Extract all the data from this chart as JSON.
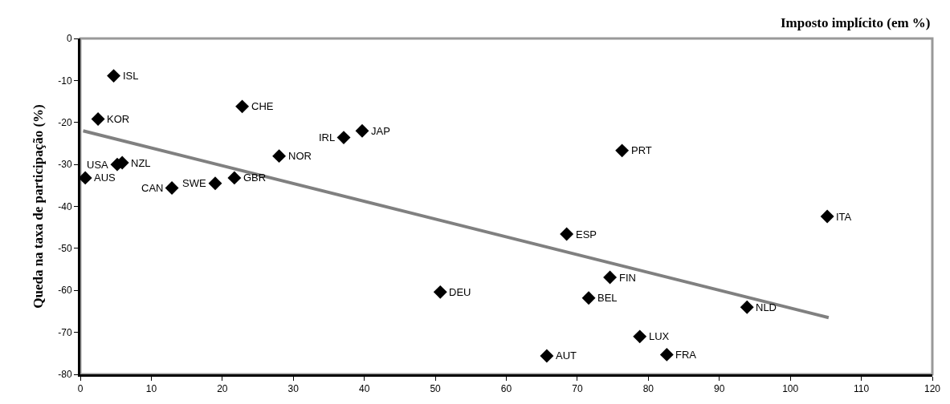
{
  "chart_data": {
    "type": "scatter",
    "xlabel": "Imposto implícito (em %)",
    "ylabel": "Queda na taxa de participação (%)",
    "xlim": [
      0,
      120
    ],
    "xticks": [
      0,
      10,
      20,
      30,
      40,
      50,
      60,
      70,
      80,
      90,
      100,
      110,
      120
    ],
    "ylim": [
      -80,
      0
    ],
    "yticks": [
      -80,
      -70,
      -60,
      -50,
      -40,
      -30,
      -20,
      -10,
      0
    ],
    "grid": false,
    "series": [
      {
        "color": "#000000",
        "marker": "diamond",
        "x": [
          4.7,
          2.5,
          22.8,
          39.7,
          37.1,
          28.0,
          5.2,
          5.9,
          0.7,
          12.9,
          19.0,
          21.7,
          50.7,
          76.3,
          105.2,
          68.5,
          74.6,
          71.6,
          93.9,
          78.8,
          82.6,
          65.7
        ],
        "values": [
          -8.9,
          -19.2,
          -16.2,
          -22.0,
          -23.6,
          -28.0,
          -30.0,
          -29.6,
          -33.2,
          -35.6,
          -34.5,
          -33.2,
          -60.4,
          -26.7,
          -42.4,
          -46.6,
          -56.9,
          -61.8,
          -64.0,
          -71.0,
          -75.3,
          -75.6
        ]
      },
      {
        "type": "line",
        "color": "#808080",
        "line_style": "solid",
        "x": [
          0.4,
          105.4
        ],
        "values": [
          -22.0,
          -66.5
        ]
      }
    ],
    "annotations": [
      {
        "text": "ISL",
        "x": 4.7,
        "y": -8.9
      },
      {
        "text": "KOR",
        "x": 2.5,
        "y": -19.2
      },
      {
        "text": "CHE",
        "x": 22.8,
        "y": -16.2
      },
      {
        "text": "JAP",
        "x": 39.7,
        "y": -22.0
      },
      {
        "text": "IRL",
        "x": 37.1,
        "y": -23.6
      },
      {
        "text": "NOR",
        "x": 28.0,
        "y": -28.0
      },
      {
        "text": "USA",
        "x": 5.2,
        "y": -30.0
      },
      {
        "text": "NZL",
        "x": 5.9,
        "y": -29.6
      },
      {
        "text": "AUS",
        "x": 0.7,
        "y": -33.2
      },
      {
        "text": "CAN",
        "x": 12.9,
        "y": -35.6
      },
      {
        "text": "SWE",
        "x": 19.0,
        "y": -34.5
      },
      {
        "text": "GBR",
        "x": 21.7,
        "y": -33.2
      },
      {
        "text": "DEU",
        "x": 50.7,
        "y": -60.4
      },
      {
        "text": "PRT",
        "x": 76.3,
        "y": -26.7
      },
      {
        "text": "ITA",
        "x": 105.2,
        "y": -42.4
      },
      {
        "text": "ESP",
        "x": 68.5,
        "y": -46.6
      },
      {
        "text": "FIN",
        "x": 74.6,
        "y": -56.9
      },
      {
        "text": "BEL",
        "x": 71.6,
        "y": -61.8
      },
      {
        "text": "NLD",
        "x": 93.9,
        "y": -64.0
      },
      {
        "text": "LUX",
        "x": 78.8,
        "y": -71.0
      },
      {
        "text": "FRA",
        "x": 82.6,
        "y": -75.3
      },
      {
        "text": "AUT",
        "x": 65.7,
        "y": -75.6
      }
    ]
  }
}
